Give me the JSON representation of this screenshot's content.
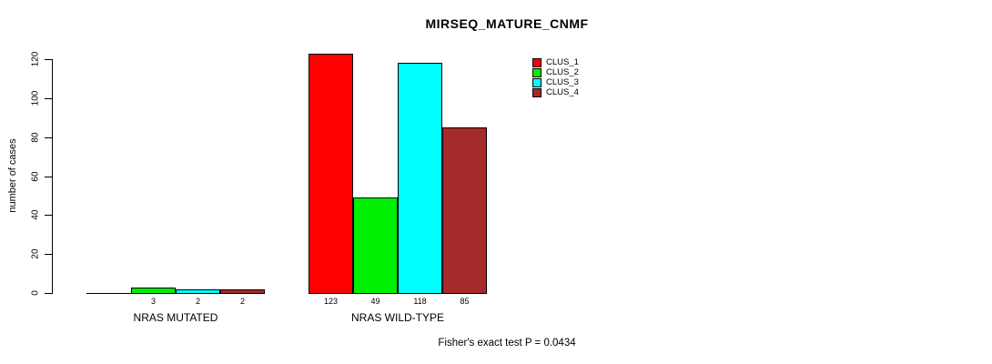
{
  "chart_data": {
    "type": "bar",
    "title": "MIRSEQ_MATURE_CNMF",
    "xlabel": "",
    "ylabel": "number of cases",
    "ylim": [
      0,
      120
    ],
    "yticks": [
      0,
      20,
      40,
      60,
      80,
      100,
      120
    ],
    "grid": false,
    "legend_position": "top-right",
    "categories": [
      "NRAS MUTATED",
      "NRAS WILD-TYPE"
    ],
    "series": [
      {
        "name": "CLUS_1",
        "color": "#FF0000",
        "values": [
          0,
          123
        ]
      },
      {
        "name": "CLUS_2",
        "color": "#00EE00",
        "values": [
          3,
          49
        ]
      },
      {
        "name": "CLUS_3",
        "color": "#00FFFF",
        "values": [
          2,
          118
        ]
      },
      {
        "name": "CLUS_4",
        "color": "#A52A2A",
        "values": [
          2,
          85
        ]
      }
    ],
    "bar_labels": [
      [
        "",
        "3",
        "2",
        "2"
      ],
      [
        "123",
        "49",
        "118",
        "85"
      ]
    ],
    "annotation": "Fisher's exact test P = 0.0434"
  }
}
